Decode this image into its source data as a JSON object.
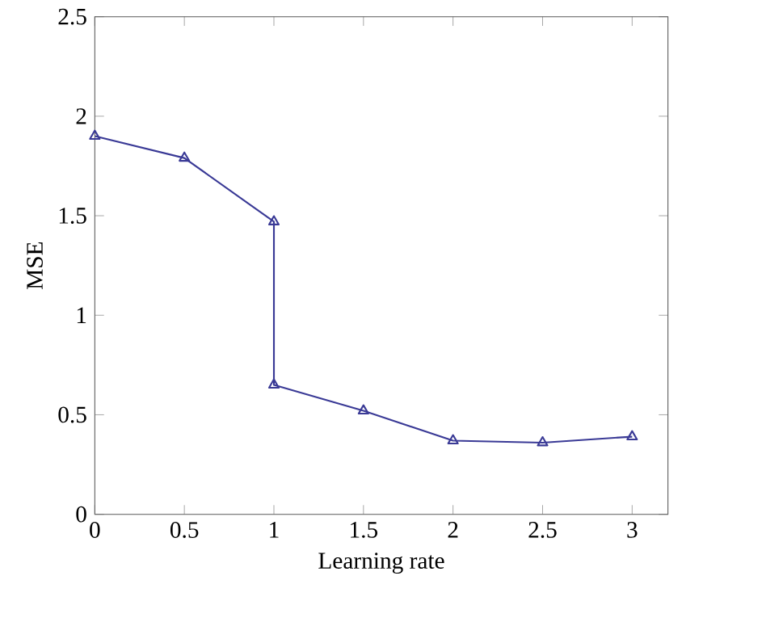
{
  "chart_data": {
    "type": "line",
    "xlabel": "Learning rate",
    "ylabel": "MSE",
    "x": [
      0,
      0.5,
      1,
      1,
      1.5,
      2,
      2.5,
      3
    ],
    "series": [
      {
        "color": "#3a3a96",
        "values": [
          1.9,
          1.79,
          1.47,
          0.65,
          0.52,
          0.37,
          0.36,
          0.39
        ]
      }
    ],
    "xlim": [
      0,
      3.2
    ],
    "ylim": [
      0,
      2.5
    ],
    "xticks": [
      0,
      0.5,
      1,
      1.5,
      2,
      2.5,
      3
    ],
    "yticks": [
      0,
      0.5,
      1,
      1.5,
      2,
      2.5
    ],
    "marker": "triangle",
    "line_style": "solid",
    "grid": false
  }
}
